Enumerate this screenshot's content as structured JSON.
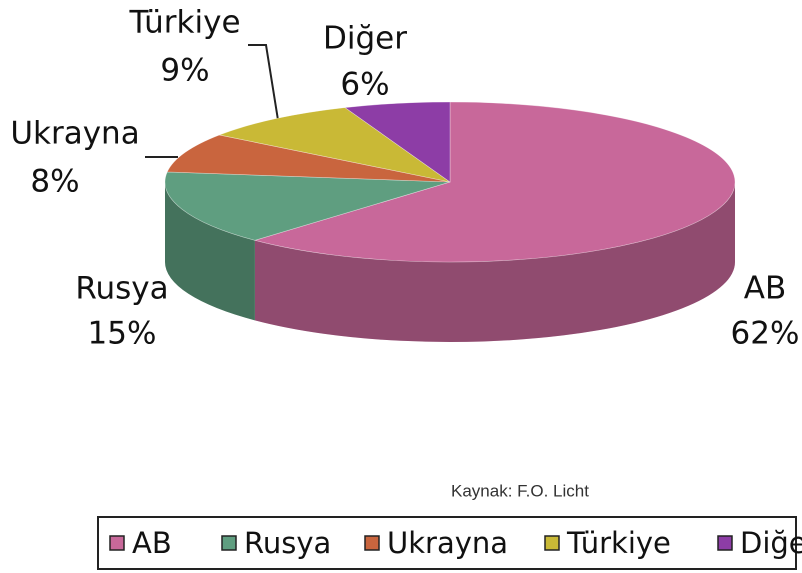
{
  "chart_data": {
    "type": "pie3d",
    "categories": [
      "AB",
      "Rusya",
      "Ukrayna",
      "Türkiye",
      "Diğer"
    ],
    "values": [
      62,
      15,
      8,
      9,
      6
    ],
    "value_labels": [
      "62%",
      "15%",
      "8%",
      "9%",
      "6%"
    ],
    "colors": [
      "#c8689a",
      "#5f9e80",
      "#c9653e",
      "#c9b936",
      "#8d3da6"
    ],
    "source": "Kaynak: F.O. Licht",
    "legend": "bottom"
  }
}
